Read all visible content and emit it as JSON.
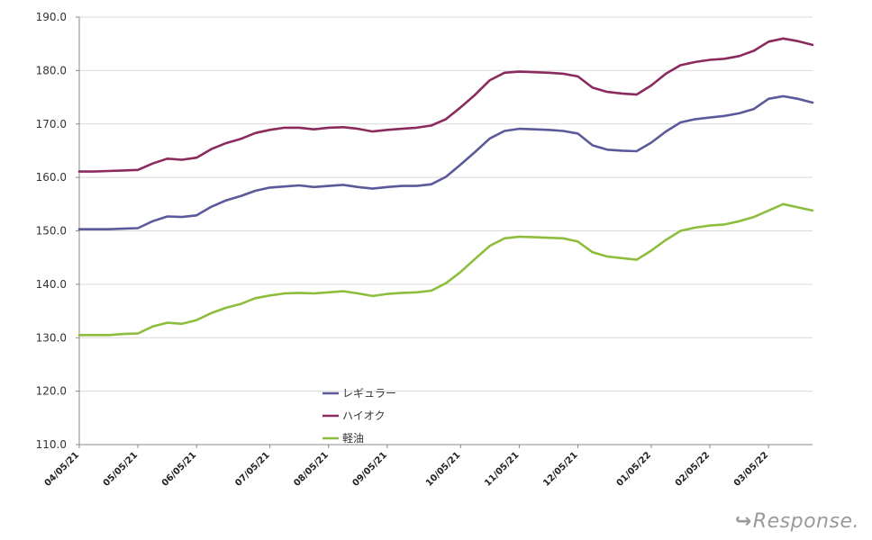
{
  "chart_data": {
    "type": "line",
    "ylim": [
      110,
      190
    ],
    "yticks": [
      "110.0",
      "120.0",
      "130.0",
      "140.0",
      "150.0",
      "160.0",
      "170.0",
      "180.0",
      "190.0"
    ],
    "x_tick_labels": [
      "04/05/21",
      "05/05/21",
      "06/05/21",
      "07/05/21",
      "08/05/21",
      "09/05/21",
      "10/05/21",
      "11/05/21",
      "12/05/21",
      "01/05/22",
      "02/05/22",
      "03/05/22"
    ],
    "x_tick_index": [
      0,
      4,
      8,
      13,
      17,
      21,
      26,
      30,
      34,
      39,
      43,
      47
    ],
    "grid": true,
    "legend_position": "center-left",
    "series": [
      {
        "name": "レギュラー",
        "color": "#5a5a9a",
        "values": [
          150.3,
          150.3,
          150.3,
          150.4,
          150.5,
          151.8,
          152.7,
          152.6,
          152.9,
          154.5,
          155.7,
          156.5,
          157.5,
          158.1,
          158.3,
          158.5,
          158.2,
          158.4,
          158.6,
          158.2,
          157.9,
          158.2,
          158.4,
          158.4,
          158.7,
          160.1,
          162.4,
          164.8,
          167.3,
          168.7,
          169.1,
          169.0,
          168.9,
          168.7,
          168.2,
          166.0,
          165.2,
          165.0,
          164.9,
          166.5,
          168.6,
          170.3,
          170.9,
          171.2,
          171.5,
          172.0,
          172.8,
          174.7,
          175.2,
          174.7,
          174.0
        ]
      },
      {
        "name": "ハイオク",
        "color": "#8b2a5c",
        "values": [
          161.1,
          161.1,
          161.2,
          161.3,
          161.4,
          162.6,
          163.5,
          163.3,
          163.7,
          165.3,
          166.4,
          167.2,
          168.3,
          168.9,
          169.3,
          169.3,
          169.0,
          169.3,
          169.4,
          169.1,
          168.6,
          168.9,
          169.1,
          169.3,
          169.7,
          170.9,
          173.1,
          175.5,
          178.2,
          179.6,
          179.8,
          179.7,
          179.6,
          179.4,
          178.9,
          176.8,
          176.0,
          175.7,
          175.5,
          177.2,
          179.4,
          181.0,
          181.6,
          182.0,
          182.2,
          182.7,
          183.7,
          185.4,
          186.0,
          185.5,
          184.8
        ]
      },
      {
        "name": "軽油",
        "color": "#8dbd3c",
        "values": [
          130.5,
          130.5,
          130.5,
          130.7,
          130.8,
          132.1,
          132.8,
          132.6,
          133.3,
          134.6,
          135.6,
          136.3,
          137.4,
          137.9,
          138.3,
          138.4,
          138.3,
          138.5,
          138.7,
          138.3,
          137.8,
          138.2,
          138.4,
          138.5,
          138.8,
          140.2,
          142.3,
          144.8,
          147.2,
          148.6,
          148.9,
          148.8,
          148.7,
          148.6,
          148.0,
          146.0,
          145.2,
          144.9,
          144.6,
          146.3,
          148.3,
          150.0,
          150.6,
          151.0,
          151.2,
          151.8,
          152.6,
          153.8,
          155.0,
          154.4,
          153.8
        ]
      }
    ]
  },
  "watermark": {
    "text": "Response."
  }
}
